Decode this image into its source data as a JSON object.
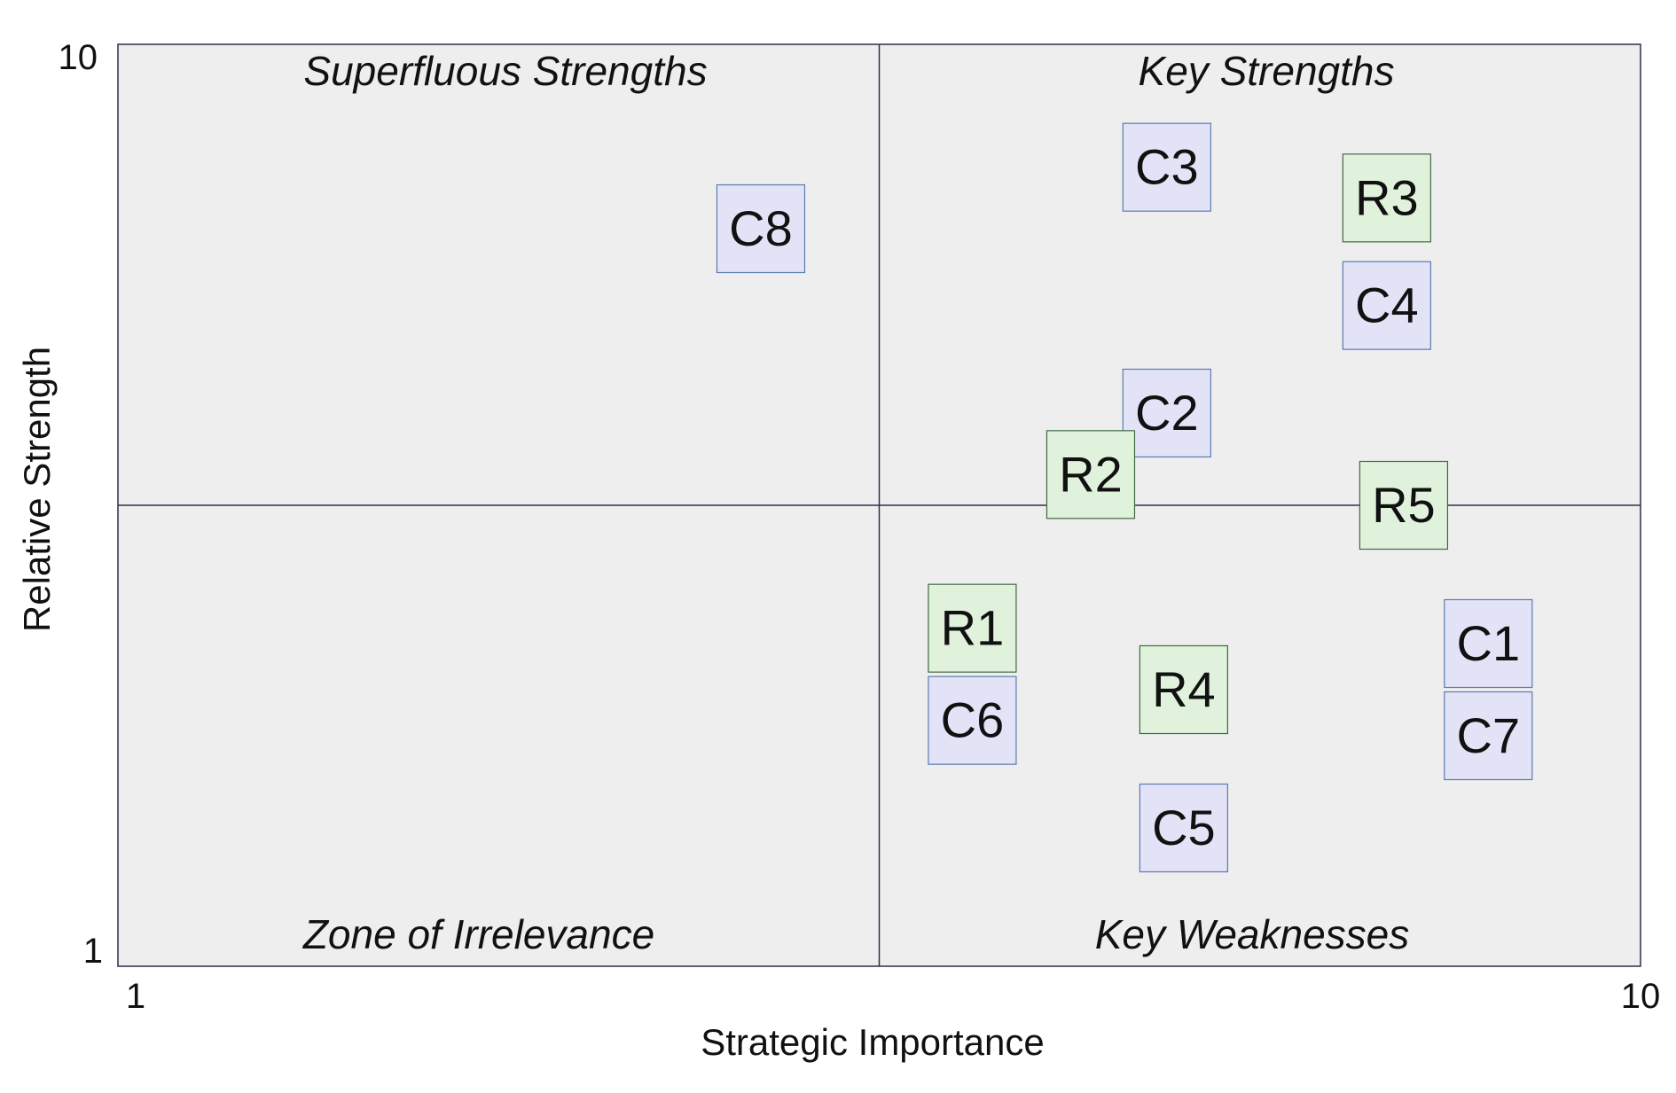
{
  "chart_data": {
    "type": "scatter",
    "title": "",
    "xlabel": "Strategic Importance",
    "ylabel": "Relative Strength",
    "xlim": [
      1,
      10
    ],
    "ylim": [
      1,
      10
    ],
    "x_tick_labels": [
      "1",
      "10"
    ],
    "y_tick_labels": [
      "10",
      "1"
    ],
    "grid": false,
    "quadrant_divider": {
      "x": 5.5,
      "y": 5.5
    },
    "quadrants": [
      {
        "label": "Superfluous Strengths",
        "position": "top-left"
      },
      {
        "label": "Key Strengths",
        "position": "top-right"
      },
      {
        "label": "Zone of Irrelevance",
        "position": "bottom-left"
      },
      {
        "label": "Key Weaknesses",
        "position": "bottom-right"
      }
    ],
    "points": [
      {
        "label": "C8",
        "x": 4.8,
        "y": 8.2,
        "kind": "C"
      },
      {
        "label": "C3",
        "x": 7.2,
        "y": 8.8,
        "kind": "C"
      },
      {
        "label": "R3",
        "x": 8.5,
        "y": 8.5,
        "kind": "R"
      },
      {
        "label": "C4",
        "x": 8.5,
        "y": 7.45,
        "kind": "C"
      },
      {
        "label": "C2",
        "x": 7.2,
        "y": 6.4,
        "kind": "C"
      },
      {
        "label": "R2",
        "x": 6.75,
        "y": 5.8,
        "kind": "R"
      },
      {
        "label": "R5",
        "x": 8.6,
        "y": 5.5,
        "kind": "R"
      },
      {
        "label": "R1",
        "x": 6.05,
        "y": 4.3,
        "kind": "R"
      },
      {
        "label": "C6",
        "x": 6.05,
        "y": 3.4,
        "kind": "C"
      },
      {
        "label": "R4",
        "x": 7.3,
        "y": 3.7,
        "kind": "R"
      },
      {
        "label": "C1",
        "x": 9.1,
        "y": 4.15,
        "kind": "C"
      },
      {
        "label": "C7",
        "x": 9.1,
        "y": 3.25,
        "kind": "C"
      },
      {
        "label": "C5",
        "x": 7.3,
        "y": 2.35,
        "kind": "C"
      }
    ]
  },
  "colors": {
    "plot_bg": "#eeeeee",
    "frame": "#2e2e4e",
    "c_fill": "#e3e3f8",
    "c_stroke": "#5a7ab0",
    "r_fill": "#e0f2dc",
    "r_stroke": "#3f6a40",
    "text": "#111111"
  }
}
